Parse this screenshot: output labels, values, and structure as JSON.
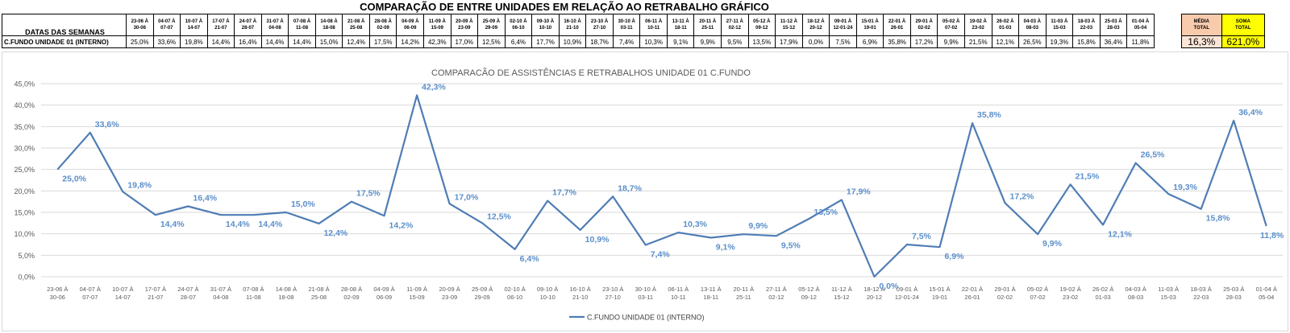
{
  "page": {
    "title": "COMPARAÇÃO DE ENTRE UNIDADES EM RELAÇÃO AO RETRABALHO GRÁFICO"
  },
  "table": {
    "header_label": "DATAS DAS SEMANAS",
    "row_label": "C.FUNDO UNIDADE 01 (INTERNO)",
    "weeks": [
      {
        "start": "23-06 À",
        "end": "30-06",
        "value": "25,0%"
      },
      {
        "start": "04-07 À",
        "end": "07-07",
        "value": "33,6%"
      },
      {
        "start": "10-07 À",
        "end": "14-07",
        "value": "19,8%"
      },
      {
        "start": "17-07 À",
        "end": "21-07",
        "value": "14,4%"
      },
      {
        "start": "24-07 À",
        "end": "28-07",
        "value": "16,4%"
      },
      {
        "start": "31-07 À",
        "end": "04-08",
        "value": "14,4%"
      },
      {
        "start": "07-08 À",
        "end": "11-08",
        "value": "14,4%"
      },
      {
        "start": "14-08 À",
        "end": "18-08",
        "value": "15,0%"
      },
      {
        "start": "21-08 À",
        "end": "25-08",
        "value": "12,4%"
      },
      {
        "start": "28-08 À",
        "end": "02-09",
        "value": "17,5%"
      },
      {
        "start": "04-09 À",
        "end": "06-09",
        "value": "14,2%"
      },
      {
        "start": "11-09 À",
        "end": "15-09",
        "value": "42,3%"
      },
      {
        "start": "20-09 À",
        "end": "23-09",
        "value": "17,0%"
      },
      {
        "start": "25-09 À",
        "end": "29-09",
        "value": "12,5%"
      },
      {
        "start": "02-10 À",
        "end": "06-10",
        "value": "6,4%"
      },
      {
        "start": "09-10 À",
        "end": "10-10",
        "value": "17,7%"
      },
      {
        "start": "16-10 À",
        "end": "21-10",
        "value": "10,9%"
      },
      {
        "start": "23-10 À",
        "end": "27-10",
        "value": "18,7%"
      },
      {
        "start": "30-10 À",
        "end": "03-11",
        "value": "7,4%"
      },
      {
        "start": "06-11 À",
        "end": "10-11",
        "value": "10,3%"
      },
      {
        "start": "13-11 À",
        "end": "18-11",
        "value": "9,1%"
      },
      {
        "start": "20-11 À",
        "end": "25-11",
        "value": "9,9%"
      },
      {
        "start": "27-11 À",
        "end": "02-12",
        "value": "9,5%"
      },
      {
        "start": "05-12 À",
        "end": "09-12",
        "value": "13,5%"
      },
      {
        "start": "11-12 À",
        "end": "15-12",
        "value": "17,9%"
      },
      {
        "start": "18-12 À",
        "end": "20-12",
        "value": "0,0%"
      },
      {
        "start": "09-01 À",
        "end": "12-01-24",
        "value": "7,5%"
      },
      {
        "start": "15-01 À",
        "end": "19-01",
        "value": "6,9%"
      },
      {
        "start": "22-01 À",
        "end": "26-01",
        "value": "35,8%"
      },
      {
        "start": "29-01 À",
        "end": "02-02",
        "value": "17,2%"
      },
      {
        "start": "05-02 À",
        "end": "07-02",
        "value": "9,9%"
      },
      {
        "start": "19-02 À",
        "end": "23-02",
        "value": "21,5%"
      },
      {
        "start": "26-02 À",
        "end": "01-03",
        "value": "12,1%"
      },
      {
        "start": "04-03 À",
        "end": "08-03",
        "value": "26,5%"
      },
      {
        "start": "11-03 À",
        "end": "15-03",
        "value": "19,3%"
      },
      {
        "start": "18-03 À",
        "end": "22-03",
        "value": "15,8%"
      },
      {
        "start": "25-03 À",
        "end": "28-03",
        "value": "36,4%"
      },
      {
        "start": "01-04 À",
        "end": "05-04",
        "value": "11,8%"
      }
    ],
    "media_label_1": "MÉDIA",
    "media_label_2": "TOTAL",
    "media_value": "16,3%",
    "soma_label_1": "SOMA",
    "soma_label_2": "TOTAL",
    "soma_value": "621,0%",
    "colors": {
      "media_header": "#f8cbad",
      "media_value": "#fbe5d6",
      "soma": "#ffff00"
    }
  },
  "chart_data": {
    "type": "line",
    "title": "COMPARACÃO DE ASSISTÊNCIAS E RETRABALHOS UNIDADE 01 C.FUNDO",
    "xlabel": "",
    "ylabel": "",
    "ylim": [
      0,
      45
    ],
    "yticks": [
      0,
      5,
      10,
      15,
      20,
      25,
      30,
      35,
      40,
      45
    ],
    "ytick_labels": [
      "0,0%",
      "5,0%",
      "10,0%",
      "15,0%",
      "20,0%",
      "25,0%",
      "30,0%",
      "35,0%",
      "40,0%",
      "45,0%"
    ],
    "grid": true,
    "legend_position": "bottom",
    "line_color": "#4f7db5",
    "label_color": "#5b8fca",
    "categories_line1": [
      "23-06 À",
      "04-07 À",
      "10-07 À",
      "17-07 À",
      "24-07 À",
      "31-07 À",
      "07-08 À",
      "14-08 À",
      "21-08 À",
      "28-08 À",
      "04-09 À",
      "11-09 À",
      "20-09 À",
      "25-09 À",
      "02-10 À",
      "09-10 À",
      "16-10 À",
      "23-10 À",
      "30-10 À",
      "06-11 À",
      "13-11 À",
      "20-11 À",
      "27-11 À",
      "05-12 À",
      "11-12 À",
      "18-12 À",
      "09-01 À",
      "15-01 À",
      "22-01 À",
      "29-01 À",
      "05-02 À",
      "19-02 À",
      "26-02 À",
      "04-03 À",
      "11-03 À",
      "18-03 À",
      "25-03 À",
      "01-04 À"
    ],
    "categories_line2": [
      "30-06",
      "07-07",
      "14-07",
      "21-07",
      "28-07",
      "04-08",
      "11-08",
      "18-08",
      "25-08",
      "02-09",
      "06-09",
      "15-09",
      "23-09",
      "29-09",
      "06-10",
      "10-10",
      "21-10",
      "27-10",
      "03-11",
      "10-11",
      "18-11",
      "25-11",
      "02-12",
      "09-12",
      "15-12",
      "20-12",
      "12-01-24",
      "19-01",
      "26-01",
      "02-02",
      "07-02",
      "23-02",
      "01-03",
      "08-03",
      "15-03",
      "22-03",
      "28-03",
      "05-04"
    ],
    "series": [
      {
        "name": "C.FUNDO UNIDADE 01 (INTERNO)",
        "values": [
          25.0,
          33.6,
          19.8,
          14.4,
          16.4,
          14.4,
          14.4,
          15.0,
          12.4,
          17.5,
          14.2,
          42.3,
          17.0,
          12.5,
          6.4,
          17.7,
          10.9,
          18.7,
          7.4,
          10.3,
          9.1,
          9.9,
          9.5,
          13.5,
          17.9,
          0.0,
          7.5,
          6.9,
          35.8,
          17.2,
          9.9,
          21.5,
          12.1,
          26.5,
          19.3,
          15.8,
          36.4,
          11.8
        ],
        "data_labels": [
          "25,0%",
          "33,6%",
          "19,8%",
          "14,4%",
          "16,4%",
          "14,4%",
          "14,4%",
          "15,0%",
          "12,4%",
          "17,5%",
          "14,2%",
          "42,3%",
          "17,0%",
          "12,5%",
          "6,4%",
          "17,7%",
          "10,9%",
          "18,7%",
          "7,4%",
          "10,3%",
          "9,1%",
          "9,9%",
          "9,5%",
          "13,5%",
          "17,9%",
          "0,0%",
          "7,5%",
          "6,9%",
          "35,8%",
          "17,2%",
          "9,9%",
          "21,5%",
          "12,1%",
          "26,5%",
          "19,3%",
          "15,8%",
          "36,4%",
          "11,8%"
        ]
      }
    ]
  }
}
